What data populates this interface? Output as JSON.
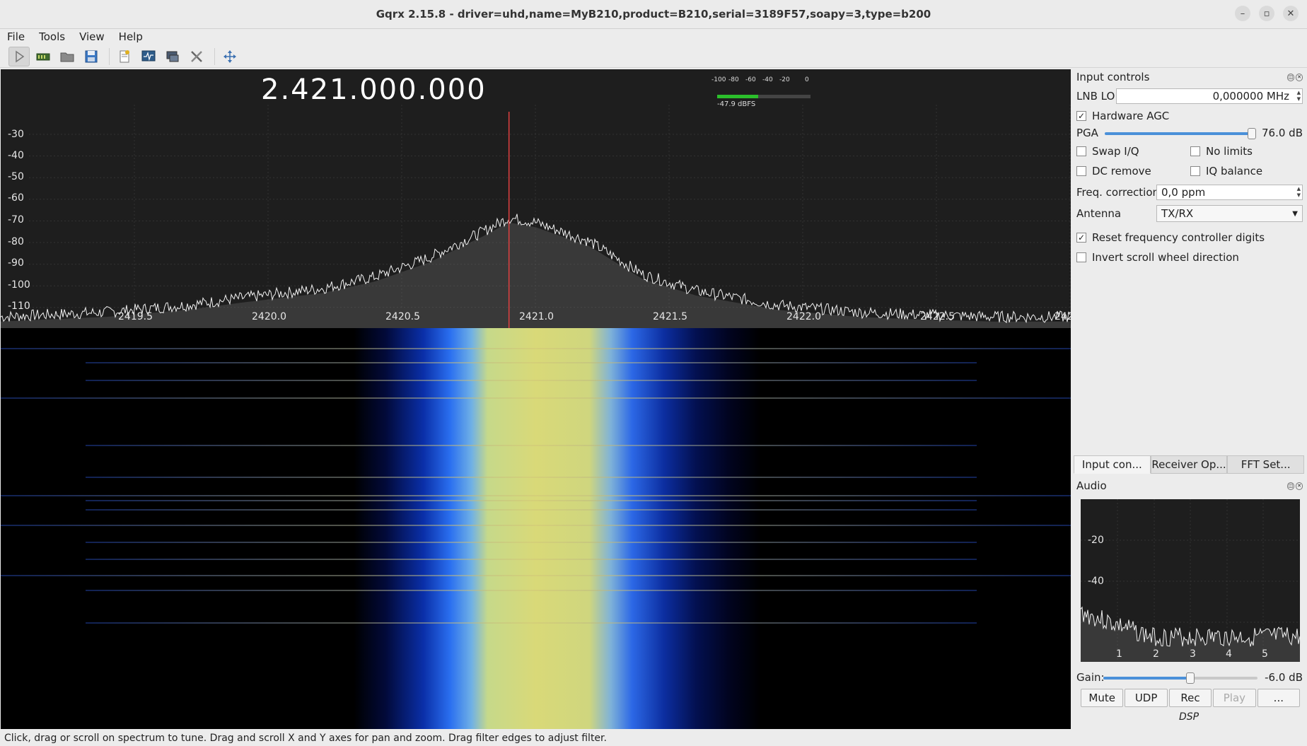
{
  "window": {
    "title": "Gqrx 2.15.8 - driver=uhd,name=MyB210,product=B210,serial=3189F57,soapy=3,type=b200"
  },
  "menu": [
    "File",
    "Tools",
    "View",
    "Help"
  ],
  "toolbar": [
    "play-icon",
    "device-icon",
    "open-icon",
    "save-icon",
    "bookmark-icon",
    "remote-control-icon",
    "dxcluster-icon",
    "settings-icon",
    "fit-icon"
  ],
  "spectrum": {
    "frequency": "2.421.000.000",
    "meter": {
      "ticks": [
        "-100",
        "-80",
        "-60",
        "-40",
        "-20",
        "0"
      ],
      "reading": "-47.9 dBFS",
      "level_dbfs": -47.9
    },
    "y_ticks": [
      "-30",
      "-40",
      "-50",
      "-60",
      "-70",
      "-80",
      "-90",
      "-100",
      "-110"
    ],
    "x_ticks": [
      "2419.5",
      "2420.0",
      "2420.5",
      "2421.0",
      "2421.5",
      "2422.0",
      "2422.5",
      "242"
    ]
  },
  "chart_data": {
    "type": "line",
    "title": "",
    "xlabel": "",
    "ylabel": "",
    "xlim": [
      2419.1,
      2423.1
    ],
    "ylim": [
      -115,
      -25
    ],
    "x": [
      2419.1,
      2419.5,
      2419.8,
      2420.0,
      2420.3,
      2420.5,
      2420.7,
      2420.9,
      2421.0,
      2421.1,
      2421.3,
      2421.5,
      2421.7,
      2422.0,
      2422.3,
      2422.5,
      2422.8,
      2423.1
    ],
    "series": [
      {
        "values": [
          -115,
          -113,
          -110,
          -107,
          -103,
          -98,
          -90,
          -79,
          -73,
          -75,
          -83,
          -97,
          -104,
          -110,
          -113,
          -114,
          -115,
          -115
        ]
      }
    ]
  },
  "status": "Click, drag or scroll on spectrum to tune. Drag and scroll X and Y axes for pan and zoom. Drag filter edges to adjust filter.",
  "input_controls": {
    "title": "Input controls",
    "lnb_lo_label": "LNB LO",
    "lnb_lo_value": "0,000000 MHz",
    "hardware_agc": "Hardware AGC",
    "pga_label": "PGA",
    "pga_value": "76.0 dB",
    "pga_level_fraction": 1.0,
    "swap_iq": "Swap I/Q",
    "no_limits": "No limits",
    "dc_remove": "DC remove",
    "iq_balance": "IQ balance",
    "freq_corr_label": "Freq. correction",
    "freq_corr_value": "0,0 ppm",
    "antenna_label": "Antenna",
    "antenna_value": "TX/RX",
    "reset_digits": "Reset frequency controller digits",
    "invert_scroll": "Invert scroll wheel direction"
  },
  "tabs": [
    "Input con...",
    "Receiver Op...",
    "FFT Set..."
  ],
  "audio": {
    "title": "Audio",
    "y_ticks": [
      "-20",
      "-40"
    ],
    "x_ticks": [
      "1",
      "2",
      "3",
      "4",
      "5"
    ],
    "gain_label": "Gain:",
    "gain_value": "-6.0 dB",
    "gain_level_fraction": 0.56,
    "buttons": [
      "Mute",
      "UDP",
      "Rec",
      "Play",
      "..."
    ],
    "dsp_label": "DSP"
  }
}
